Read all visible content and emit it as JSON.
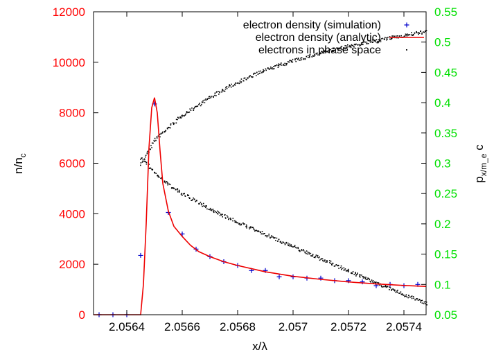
{
  "colors": {
    "left_axis": "#ff0000",
    "right_axis": "#00e000",
    "simulation": "#0000cc",
    "analytic": "#ee0000",
    "phase_space": "#000000",
    "frame": "#000000"
  },
  "chart_data": {
    "type": "scatter",
    "title": "",
    "xlabel": "x/λ",
    "ylabel_left": "n/n_c",
    "ylabel_right": "p_x/m_e c",
    "xlim": [
      2.05628,
      2.05748
    ],
    "ylim_left": [
      0,
      12000
    ],
    "ylim_right": [
      0.05,
      0.55
    ],
    "x_ticks": [
      "2.0564",
      "2.0566",
      "2.0568",
      "2.057",
      "2.0572",
      "2.0574"
    ],
    "x_tick_values": [
      2.0564,
      2.0566,
      2.0568,
      2.057,
      2.0572,
      2.0574
    ],
    "y_left_ticks": [
      "0",
      "2000",
      "4000",
      "6000",
      "8000",
      "10000",
      "12000"
    ],
    "y_left_tick_values": [
      0,
      2000,
      4000,
      6000,
      8000,
      10000,
      12000
    ],
    "y_right_ticks": [
      "0.05",
      "0.1",
      "0.15",
      "0.2",
      "0.25",
      "0.3",
      "0.35",
      "0.4",
      "0.45",
      "0.5",
      "0.55"
    ],
    "y_right_tick_values": [
      0.05,
      0.1,
      0.15,
      0.2,
      0.25,
      0.3,
      0.35,
      0.4,
      0.45,
      0.5,
      0.55
    ],
    "legend_position": "top-right",
    "series": [
      {
        "name": "electron density (simulation)",
        "kind": "points",
        "axis": "left",
        "marker": "+",
        "x": [
          2.0563,
          2.05635,
          2.0564,
          2.05645,
          2.0565,
          2.05655,
          2.0566,
          2.05665,
          2.0567,
          2.05675,
          2.0568,
          2.05685,
          2.0569,
          2.05695,
          2.057,
          2.05705,
          2.0571,
          2.05715,
          2.0572,
          2.05725,
          2.0573,
          2.05735,
          2.0574,
          2.05745
        ],
        "y": [
          0,
          0,
          0,
          2350,
          8350,
          4050,
          3200,
          2600,
          2300,
          2100,
          1950,
          1750,
          1750,
          1500,
          1500,
          1450,
          1450,
          1350,
          1350,
          1300,
          1150,
          1200,
          1150,
          1200
        ]
      },
      {
        "name": "electron density (analytic)",
        "kind": "line",
        "axis": "left",
        "x": [
          2.05628,
          2.0564,
          2.05645,
          2.05646,
          2.05647,
          2.05648,
          2.05649,
          2.0565,
          2.05651,
          2.05652,
          2.05653,
          2.05655,
          2.05657,
          2.0566,
          2.05663,
          2.05666,
          2.0567,
          2.05675,
          2.0568,
          2.0569,
          2.057,
          2.0571,
          2.0572,
          2.0573,
          2.0574,
          2.05748
        ],
        "y": [
          0,
          0,
          0,
          1200,
          3600,
          6600,
          8200,
          8600,
          8000,
          6500,
          5200,
          4100,
          3500,
          3100,
          2750,
          2500,
          2300,
          2100,
          1950,
          1700,
          1520,
          1400,
          1300,
          1220,
          1160,
          1120
        ]
      },
      {
        "name": "electrons in phase space",
        "kind": "dots",
        "axis": "right",
        "upper_branch": {
          "x": [
            2.05645,
            2.0565,
            2.05655,
            2.0566,
            2.0567,
            2.0568,
            2.0569,
            2.057,
            2.0571,
            2.0572,
            2.0573,
            2.0574,
            2.05748
          ],
          "y": [
            0.3,
            0.34,
            0.36,
            0.38,
            0.41,
            0.435,
            0.455,
            0.47,
            0.483,
            0.494,
            0.503,
            0.512,
            0.518
          ]
        },
        "lower_branch": {
          "x": [
            2.05645,
            2.0565,
            2.05655,
            2.0566,
            2.0567,
            2.0568,
            2.0569,
            2.057,
            2.0571,
            2.0572,
            2.0573,
            2.0574,
            2.05748
          ],
          "y": [
            0.31,
            0.285,
            0.265,
            0.25,
            0.225,
            0.203,
            0.183,
            0.163,
            0.143,
            0.123,
            0.103,
            0.084,
            0.07
          ]
        }
      }
    ]
  }
}
